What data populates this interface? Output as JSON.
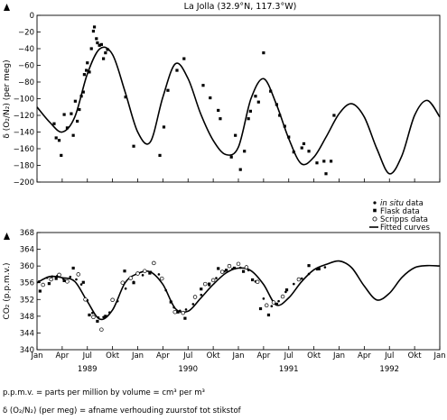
{
  "chart_data": [
    {
      "type": "scatter",
      "title": "La Jolla (32.9°N, 117.3°W)",
      "ylabel": "δ (O₂/N₂) (per meg)",
      "ylim": [
        -200,
        0
      ],
      "yticks": [
        0,
        -20,
        -40,
        -60,
        -80,
        -100,
        -120,
        -140,
        -160,
        -180,
        -200
      ],
      "grid": false,
      "series": [
        {
          "name": "Flask data",
          "marker": "square",
          "x": [
            1989.17,
            1989.19,
            1989.22,
            1989.24,
            1989.27,
            1989.3,
            1989.34,
            1989.36,
            1989.38,
            1989.4,
            1989.42,
            1989.44,
            1989.46,
            1989.47,
            1989.49,
            1989.5,
            1989.52,
            1989.54,
            1989.56,
            1989.57,
            1989.59,
            1989.6,
            1989.62,
            1989.64,
            1989.66,
            1989.68,
            1989.7,
            1989.88,
            1989.96,
            1990.22,
            1990.26,
            1990.3,
            1990.39,
            1990.46,
            1990.65,
            1990.72,
            1990.8,
            1990.82,
            1990.93,
            1990.97,
            1991.02,
            1991.06,
            1991.1,
            1991.12,
            1991.17,
            1991.2,
            1991.25,
            1991.32,
            1991.38,
            1991.41,
            1991.46,
            1991.5,
            1991.55,
            1991.63,
            1991.65,
            1991.7,
            1991.78,
            1991.85,
            1991.87,
            1991.92,
            1991.95
          ],
          "y": [
            -130,
            -147,
            -150,
            -168,
            -119,
            -135,
            -118,
            -144,
            -103,
            -127,
            -113,
            -97,
            -92,
            -71,
            -66,
            -57,
            -68,
            -40,
            -19,
            -14,
            -28,
            -33,
            -36,
            -35,
            -52,
            -45,
            -41,
            -98,
            -157,
            -168,
            -134,
            -90,
            -66,
            -52,
            -84,
            -99,
            -114,
            -124,
            -170,
            -144,
            -185,
            -163,
            -124,
            -115,
            -97,
            -104,
            -45,
            -91,
            -107,
            -120,
            -133,
            -146,
            -164,
            -159,
            -154,
            -163,
            -177,
            -175,
            -190,
            -175,
            -120
          ]
        },
        {
          "name": "Fitted curves",
          "marker": "line",
          "x": [
            1989.0,
            1989.125,
            1989.25,
            1989.375,
            1989.5,
            1989.625,
            1989.75,
            1989.875,
            1990.0,
            1990.125,
            1990.25,
            1990.375,
            1990.5,
            1990.625,
            1990.75,
            1990.875,
            1991.0,
            1991.125,
            1991.25,
            1991.375,
            1991.5,
            1991.625,
            1991.75,
            1991.875,
            1992.0,
            1992.125,
            1992.25,
            1992.375,
            1992.5,
            1992.625,
            1992.75,
            1992.875,
            1993.0
          ],
          "y": [
            -110,
            -128,
            -140,
            -122,
            -70,
            -40,
            -47,
            -92,
            -140,
            -152,
            -98,
            -58,
            -76,
            -118,
            -150,
            -167,
            -158,
            -100,
            -76,
            -106,
            -148,
            -178,
            -170,
            -145,
            -118,
            -106,
            -122,
            -160,
            -190,
            -168,
            -120,
            -102,
            -122
          ]
        }
      ]
    },
    {
      "type": "scatter",
      "ylabel": "CO₂ (p.p.m.v.)",
      "ylim": [
        340,
        368
      ],
      "yticks": [
        340,
        344,
        348,
        352,
        356,
        360,
        364,
        368
      ],
      "grid": false,
      "series": [
        {
          "name": "in situ data",
          "marker": "dot",
          "x": [
            1989.02,
            1989.1,
            1989.15,
            1989.2,
            1989.26,
            1989.33,
            1989.39,
            1989.44,
            1989.5,
            1989.55,
            1989.61,
            1989.66,
            1989.72,
            1989.8,
            1989.88,
            1989.96,
            1990.05,
            1990.13,
            1990.21,
            1990.28,
            1990.36,
            1990.42,
            1990.48,
            1990.55,
            1990.63,
            1990.71,
            1990.78,
            1990.86,
            1990.94,
            1991.02,
            1991.1,
            1991.17,
            1991.25,
            1991.33,
            1991.4,
            1991.47,
            1991.55,
            1991.63,
            1991.7,
            1991.78,
            1991.86
          ],
          "y": [
            356.3,
            357.2,
            357.5,
            357.6,
            357.0,
            357.4,
            356.8,
            355.6,
            351.8,
            348.8,
            347.7,
            347.8,
            348.9,
            351.6,
            354.6,
            356.2,
            357.8,
            358.6,
            358.0,
            354.2,
            350.1,
            349.3,
            349.6,
            350.9,
            353.1,
            355.4,
            357.1,
            358.7,
            359.3,
            359.6,
            359.0,
            356.3,
            352.2,
            350.4,
            351.6,
            353.8,
            355.7,
            357.0,
            358.1,
            359.2,
            359.7
          ]
        },
        {
          "name": "Flask data",
          "marker": "square",
          "x": [
            1989.03,
            1989.12,
            1989.19,
            1989.27,
            1989.36,
            1989.46,
            1989.52,
            1989.6,
            1989.68,
            1989.87,
            1989.96,
            1990.12,
            1990.33,
            1990.4,
            1990.47,
            1990.63,
            1990.71,
            1990.8,
            1990.88,
            1990.96,
            1991.05,
            1991.14,
            1991.22,
            1991.3,
            1991.38,
            1991.48,
            1991.7,
            1991.8
          ],
          "y": [
            354.0,
            355.8,
            357.0,
            356.5,
            359.5,
            356.1,
            348.3,
            346.8,
            348.0,
            358.8,
            356.0,
            358.3,
            351.4,
            349.0,
            347.5,
            354.5,
            355.7,
            359.4,
            359.0,
            359.5,
            358.7,
            356.7,
            349.8,
            348.3,
            350.9,
            354.3,
            360.1,
            359.3
          ]
        },
        {
          "name": "Scripps data",
          "marker": "circle",
          "x": [
            1989.06,
            1989.14,
            1989.22,
            1989.3,
            1989.41,
            1989.48,
            1989.56,
            1989.64,
            1989.75,
            1989.85,
            1989.93,
            1990.0,
            1990.07,
            1990.16,
            1990.24,
            1990.37,
            1990.45,
            1990.57,
            1990.67,
            1990.75,
            1990.84,
            1990.91,
            1991.0,
            1991.08,
            1991.19,
            1991.28,
            1991.35,
            1991.44,
            1991.6
          ],
          "y": [
            355.5,
            356.8,
            357.9,
            356.3,
            358.0,
            352.0,
            347.8,
            344.8,
            351.9,
            356.0,
            357.1,
            358.2,
            358.8,
            360.7,
            357.0,
            349.0,
            348.8,
            352.6,
            355.7,
            356.6,
            358.6,
            360.0,
            360.5,
            359.7,
            356.2,
            350.6,
            351.3,
            352.7,
            356.8
          ]
        },
        {
          "name": "Fitted curves",
          "marker": "line",
          "x": [
            1989.0,
            1989.125,
            1989.25,
            1989.375,
            1989.5,
            1989.625,
            1989.75,
            1989.875,
            1990.0,
            1990.125,
            1990.25,
            1990.375,
            1990.5,
            1990.625,
            1990.75,
            1990.875,
            1991.0,
            1991.125,
            1991.25,
            1991.375,
            1991.5,
            1991.625,
            1991.75,
            1991.875,
            1992.0,
            1992.125,
            1992.25,
            1992.375,
            1992.5,
            1992.625,
            1992.75,
            1992.875,
            1993.0
          ],
          "y": [
            356.0,
            357.5,
            357.2,
            356.3,
            351.5,
            347.3,
            349.5,
            356.0,
            358.2,
            358.6,
            355.6,
            349.8,
            349.2,
            352.3,
            355.6,
            358.3,
            359.5,
            358.9,
            355.6,
            350.7,
            352.4,
            356.2,
            359.1,
            360.4,
            361.2,
            359.6,
            355.2,
            351.9,
            353.5,
            357.3,
            359.6,
            360.1,
            360.0
          ]
        }
      ],
      "x_months": [
        "Jan",
        "Apr",
        "Jul",
        "Okt",
        "Jan",
        "Apr",
        "Jul",
        "Okt",
        "Jan",
        "Apr",
        "Jul",
        "Okt",
        "Jan",
        "Apr",
        "Jul",
        "Okt",
        "Jan"
      ],
      "x_years": [
        "1989",
        "1990",
        "1991",
        "1992"
      ],
      "xlim": [
        1989,
        1993
      ]
    }
  ],
  "legend": {
    "entries": [
      {
        "marker": "dot",
        "italic": "in situ",
        "text": " data"
      },
      {
        "marker": "square",
        "italic": "",
        "text": "Flask data"
      },
      {
        "marker": "circle",
        "italic": "",
        "text": "Scripps data"
      },
      {
        "marker": "line",
        "italic": "",
        "text": "Fitted curves"
      }
    ],
    "placement": "bottom-right of top panel"
  },
  "footnotes": {
    "ppmv": "p.p.m.v. = parts per million by volume = cm³ per m³",
    "permeg": "δ (O₂/N₂) (per meg) = afname verhouding zuurstof tot stikstof"
  }
}
